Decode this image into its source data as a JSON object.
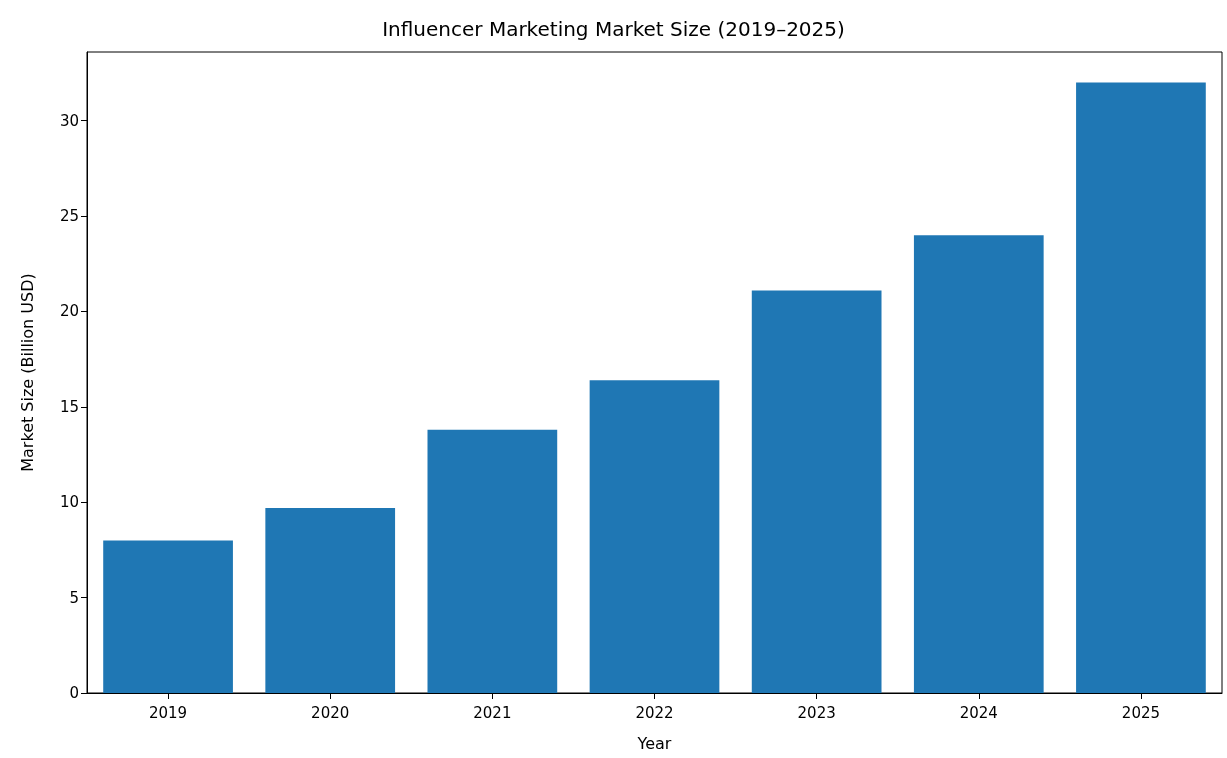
{
  "chart_data": {
    "type": "bar",
    "title": "Influencer Marketing Market Size (2019–2025)",
    "xlabel": "Year",
    "ylabel": "Market Size (Billion USD)",
    "categories": [
      "2019",
      "2020",
      "2021",
      "2022",
      "2023",
      "2024",
      "2025"
    ],
    "values": [
      8.0,
      9.7,
      13.8,
      16.4,
      21.1,
      24.0,
      32.0
    ],
    "color": "#1f77b4",
    "ylim": [
      0,
      33.6
    ],
    "yticks": [
      0,
      5,
      10,
      15,
      20,
      25,
      30
    ],
    "grid": false
  }
}
